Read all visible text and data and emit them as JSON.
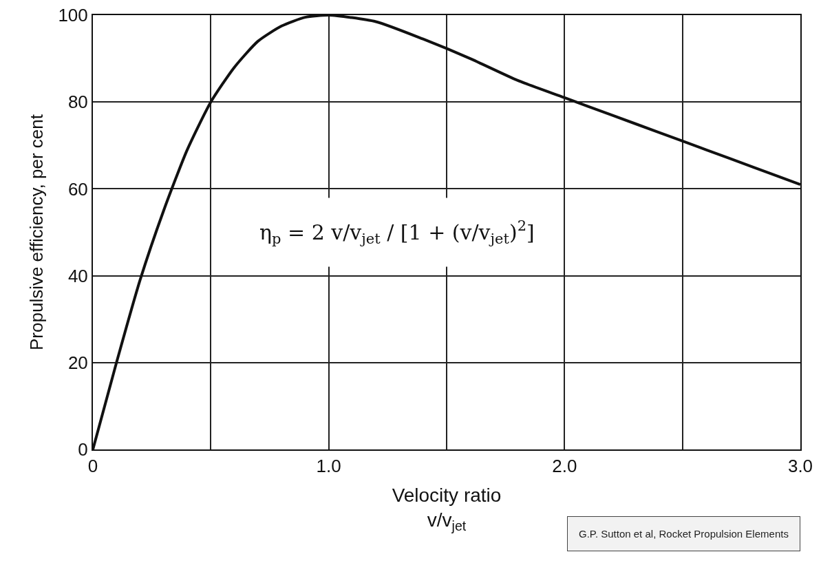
{
  "chart_data": {
    "type": "line",
    "xlabel": "Velocity ratio\nv/v$_{jet}$",
    "ylabel": "Propulsive efficiency, per cent",
    "x": [
      0,
      0.1,
      0.2,
      0.3,
      0.4,
      0.5,
      0.6,
      0.7,
      0.8,
      0.9,
      1.0,
      1.2,
      1.4,
      1.6,
      1.8,
      2.0,
      2.2,
      2.4,
      2.6,
      2.8,
      3.0
    ],
    "series": [
      {
        "color": "#111111",
        "values": [
          0,
          20,
          39,
          55,
          69,
          80,
          88,
          94,
          97.5,
          99.5,
          100,
          98.5,
          94.5,
          90,
          85,
          81,
          77,
          73,
          69,
          65,
          61
        ]
      }
    ],
    "xlim": [
      0,
      3
    ],
    "xticks": [
      0,
      {
        "value": 0.5,
        "label": null
      },
      {
        "value": 1,
        "label": "1.0"
      },
      {
        "value": 1.5,
        "label": null
      },
      {
        "value": 2,
        "label": "2.0"
      },
      {
        "value": 2.5,
        "label": null
      },
      {
        "value": 3,
        "label": "3.0"
      }
    ],
    "ylim": [
      0,
      100
    ],
    "yticks": [
      0,
      20,
      40,
      60,
      80,
      100
    ],
    "grid": true,
    "marker": "none",
    "line_style": "solid",
    "annotations": [
      "η$_{p}$ = 2 v/v$_{jet}$ / [1 + (v/v$_{jet}$)$^{2}$]",
      "G.P. Sutton et al, Rocket Propulsion Elements"
    ]
  }
}
